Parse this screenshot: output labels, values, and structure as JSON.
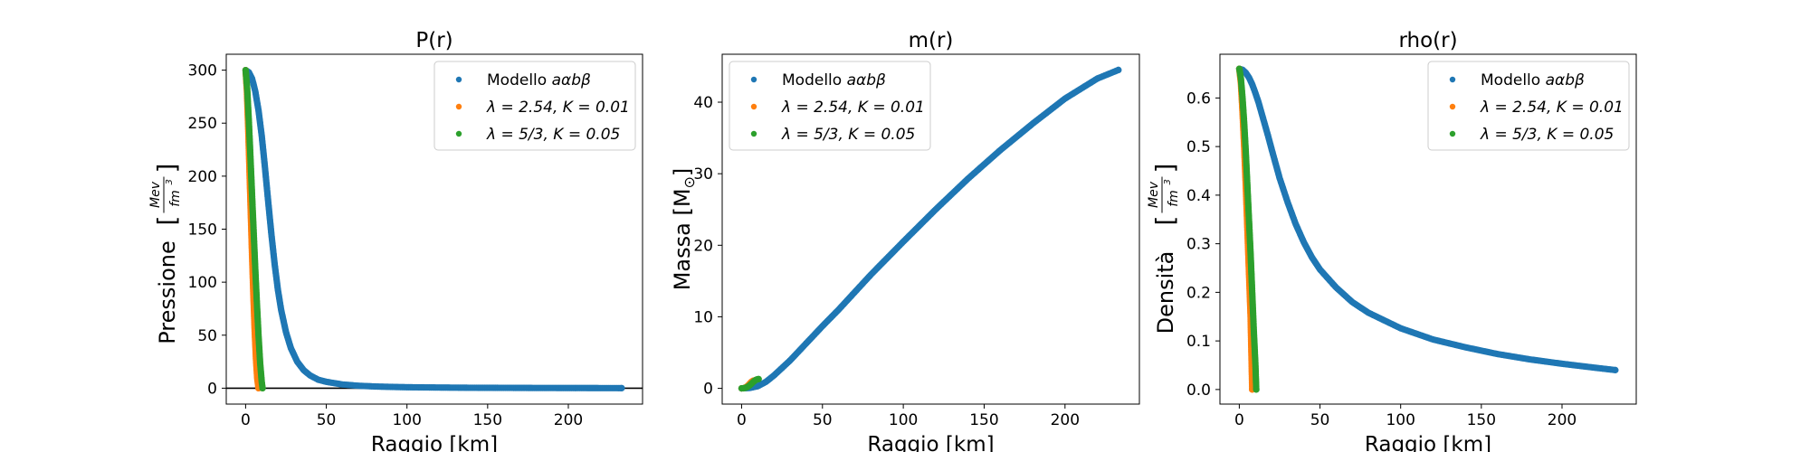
{
  "chart_data": [
    {
      "type": "scatter",
      "title": "P(r)",
      "xlabel": "Raggio [km]",
      "ylabel": "Pressione",
      "ylabel_unit_num": "Mev",
      "ylabel_unit_den": "fm",
      "ylabel_unit_exp": "3",
      "xlim": [
        -12,
        246
      ],
      "ylim": [
        -15,
        315
      ],
      "xticks": [
        0,
        50,
        100,
        150,
        200
      ],
      "yticks": [
        0,
        50,
        100,
        150,
        200,
        250,
        300
      ],
      "hline": 0,
      "legend": "top-right",
      "series": [
        {
          "name_prefix": "Modello ",
          "name_math": "aαbβ",
          "color": "#1f77b4",
          "x": [
            0,
            2,
            4,
            6,
            8,
            10,
            12,
            14,
            16,
            18,
            20,
            22,
            25,
            28,
            32,
            36,
            40,
            45,
            50,
            60,
            70,
            80,
            90,
            100,
            120,
            140,
            160,
            180,
            200,
            220,
            233
          ],
          "y": [
            300,
            298,
            292,
            280,
            262,
            238,
            208,
            176,
            145,
            117,
            93,
            74,
            53,
            38,
            25,
            17,
            12,
            8,
            6,
            3.5,
            2.3,
            1.6,
            1.2,
            0.9,
            0.6,
            0.4,
            0.3,
            0.2,
            0.15,
            0.1,
            0.05
          ]
        },
        {
          "name_math": "λ = 2.54, K = 0.01",
          "color": "#ff7f0e",
          "x": [
            0,
            0.8,
            1.6,
            2.4,
            3.2,
            4,
            4.8,
            5.6,
            6.4,
            7.2,
            8
          ],
          "y": [
            300,
            280,
            245,
            205,
            165,
            125,
            88,
            55,
            28,
            9,
            0
          ]
        },
        {
          "name_math": "λ = 5/3, K = 0.05",
          "color": "#2ca02c",
          "x": [
            0,
            1,
            2,
            3,
            4,
            5,
            6,
            7,
            8,
            9,
            10,
            10.5
          ],
          "y": [
            300,
            282,
            252,
            218,
            182,
            147,
            112,
            80,
            50,
            24,
            6,
            0
          ]
        }
      ]
    },
    {
      "type": "scatter",
      "title": "m(r)",
      "xlabel": "Raggio [km]",
      "ylabel": "Massa [M",
      "ylabel_sub": "⊙",
      "ylabel_end": "]",
      "xlim": [
        -12,
        246
      ],
      "ylim": [
        -2.2,
        46.7
      ],
      "xticks": [
        0,
        50,
        100,
        150,
        200
      ],
      "yticks": [
        0,
        10,
        20,
        30,
        40
      ],
      "legend": "top-left",
      "series": [
        {
          "name_prefix": "Modello ",
          "name_math": "aαbβ",
          "color": "#1f77b4",
          "x": [
            0,
            5,
            10,
            15,
            20,
            30,
            40,
            50,
            60,
            80,
            100,
            120,
            140,
            160,
            180,
            200,
            220,
            233
          ],
          "y": [
            0,
            0.05,
            0.3,
            0.9,
            1.8,
            3.9,
            6.3,
            8.7,
            11,
            15.9,
            20.5,
            25,
            29.3,
            33.3,
            37,
            40.5,
            43.3,
            44.5
          ]
        },
        {
          "name_math": "λ = 2.54, K = 0.01",
          "color": "#ff7f0e",
          "x": [
            0,
            1,
            2,
            3,
            4,
            5,
            6,
            7,
            8
          ],
          "y": [
            0,
            0.02,
            0.08,
            0.2,
            0.4,
            0.65,
            0.9,
            1.05,
            1.1
          ]
        },
        {
          "name_math": "λ = 5/3, K = 0.05",
          "color": "#2ca02c",
          "x": [
            0,
            1,
            2,
            3,
            4,
            5,
            6,
            7,
            8,
            9,
            10,
            10.5
          ],
          "y": [
            0,
            0.01,
            0.05,
            0.12,
            0.25,
            0.42,
            0.62,
            0.85,
            1.05,
            1.2,
            1.28,
            1.3
          ]
        }
      ]
    },
    {
      "type": "scatter",
      "title": "rho(r)",
      "xlabel": "Raggio [km]",
      "ylabel": "Densità",
      "ylabel_unit_num": "Mev",
      "ylabel_unit_den": "fm",
      "ylabel_unit_exp": "3",
      "xlim": [
        -12,
        246
      ],
      "ylim": [
        -0.03,
        0.69
      ],
      "xticks": [
        0,
        50,
        100,
        150,
        200
      ],
      "yticks": [
        0.0,
        0.1,
        0.2,
        0.3,
        0.4,
        0.5,
        0.6
      ],
      "legend": "top-right",
      "series": [
        {
          "name_prefix": "Modello ",
          "name_math": "aαbβ",
          "color": "#1f77b4",
          "x": [
            0,
            2,
            4,
            6,
            8,
            10,
            12,
            15,
            18,
            20,
            25,
            30,
            35,
            40,
            45,
            50,
            60,
            70,
            80,
            100,
            120,
            140,
            160,
            180,
            200,
            220,
            233
          ],
          "y": [
            0.66,
            0.658,
            0.652,
            0.642,
            0.628,
            0.61,
            0.59,
            0.555,
            0.52,
            0.495,
            0.435,
            0.385,
            0.34,
            0.303,
            0.272,
            0.247,
            0.21,
            0.18,
            0.158,
            0.126,
            0.103,
            0.087,
            0.073,
            0.062,
            0.053,
            0.045,
            0.04
          ]
        },
        {
          "name_math": "λ = 2.54, K = 0.01",
          "color": "#ff7f0e",
          "x": [
            0,
            1,
            2,
            3,
            4,
            5,
            6,
            7,
            8
          ],
          "y": [
            0.66,
            0.63,
            0.57,
            0.5,
            0.42,
            0.33,
            0.24,
            0.15,
            0.0
          ]
        },
        {
          "name_math": "λ = 5/3, K = 0.05",
          "color": "#2ca02c",
          "x": [
            0,
            1,
            2,
            3,
            4,
            5,
            6,
            7,
            8,
            9,
            10,
            10.5
          ],
          "y": [
            0.66,
            0.64,
            0.6,
            0.55,
            0.49,
            0.42,
            0.35,
            0.28,
            0.2,
            0.12,
            0.05,
            0.0
          ]
        }
      ]
    }
  ]
}
